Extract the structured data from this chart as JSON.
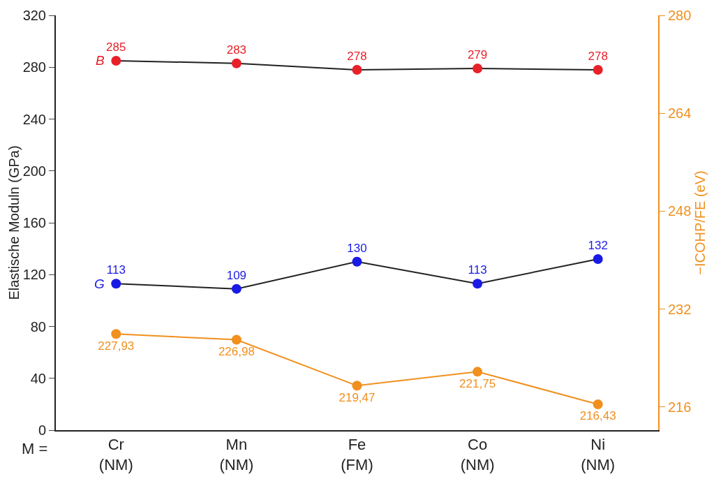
{
  "chart_data": {
    "type": "line",
    "categories": [
      "Cr\n(NM)",
      "Mn\n(NM)",
      "Fe\n(FM)",
      "Co\n(NM)",
      "Ni\n(NM)"
    ],
    "series": [
      {
        "color": "#e8202a",
        "values": [
          285,
          283,
          278,
          279,
          278
        ],
        "value_labels": [
          "285",
          "283",
          "278",
          "279",
          "278"
        ]
      },
      {
        "color": "#1a1ae6",
        "values": [
          113,
          109,
          130,
          113,
          132
        ],
        "value_labels": [
          "113",
          "109",
          "130",
          "113",
          "132"
        ]
      },
      {
        "color": "#f0901e",
        "axis": "y2",
        "values": [
          227.93,
          226.98,
          219.47,
          221.75,
          216.43
        ],
        "value_labels": [
          "227,93",
          "226,98",
          "219,47",
          "221,75",
          "216,43"
        ]
      }
    ],
    "ylabel": "Elastische Moduln (GPa)",
    "y2label": "−ICOHP/FE (eV)",
    "ylim": [
      0,
      320
    ],
    "yticks": [
      0,
      40,
      80,
      120,
      160,
      200,
      240,
      280,
      320
    ],
    "y2lim": [
      212.2,
      280
    ],
    "y2ticks": [
      216,
      232,
      248,
      264,
      280
    ],
    "annotations": [
      {
        "text": "B",
        "x": "Cr\n(NM)",
        "y": 285
      },
      {
        "text": "G",
        "x": "Cr\n(NM)",
        "y": 113
      },
      "M ="
    ],
    "marker": "circle"
  }
}
